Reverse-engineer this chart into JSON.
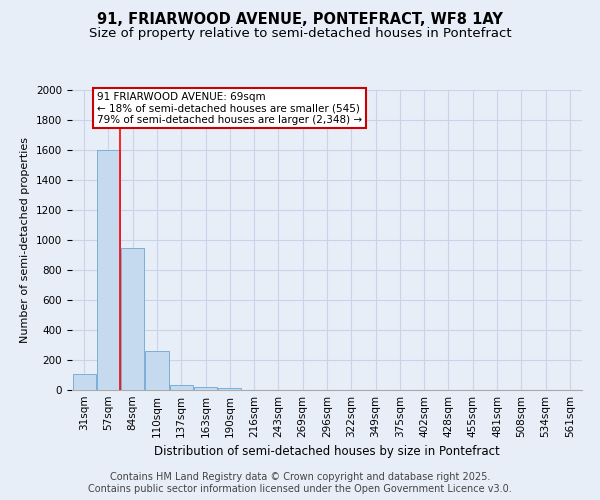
{
  "title": "91, FRIARWOOD AVENUE, PONTEFRACT, WF8 1AY",
  "subtitle": "Size of property relative to semi-detached houses in Pontefract",
  "xlabel": "Distribution of semi-detached houses by size in Pontefract",
  "ylabel": "Number of semi-detached properties",
  "footer_line1": "Contains HM Land Registry data © Crown copyright and database right 2025.",
  "footer_line2": "Contains public sector information licensed under the Open Government Licence v3.0.",
  "bin_labels": [
    "31sqm",
    "57sqm",
    "84sqm",
    "110sqm",
    "137sqm",
    "163sqm",
    "190sqm",
    "216sqm",
    "243sqm",
    "269sqm",
    "296sqm",
    "322sqm",
    "349sqm",
    "375sqm",
    "402sqm",
    "428sqm",
    "455sqm",
    "481sqm",
    "508sqm",
    "534sqm",
    "561sqm"
  ],
  "bar_heights": [
    110,
    1600,
    950,
    260,
    35,
    20,
    15,
    0,
    0,
    0,
    0,
    0,
    0,
    0,
    0,
    0,
    0,
    0,
    0,
    0,
    0
  ],
  "bar_color": "#c5d9ef",
  "bar_edge_color": "#7aafd4",
  "red_line_x": 1.46,
  "annotation_text": "91 FRIARWOOD AVENUE: 69sqm\n← 18% of semi-detached houses are smaller (545)\n79% of semi-detached houses are larger (2,348) →",
  "annotation_box_color": "#ffffff",
  "annotation_box_edge_color": "#cc0000",
  "ylim": [
    0,
    2000
  ],
  "yticks": [
    0,
    200,
    400,
    600,
    800,
    1000,
    1200,
    1400,
    1600,
    1800,
    2000
  ],
  "grid_color": "#c8d4e8",
  "background_color": "#e8eef8",
  "title_fontsize": 10.5,
  "subtitle_fontsize": 9.5,
  "tick_fontsize": 7.5,
  "ylabel_fontsize": 8,
  "xlabel_fontsize": 8.5,
  "footer_fontsize": 7,
  "annotation_fontsize": 7.5
}
